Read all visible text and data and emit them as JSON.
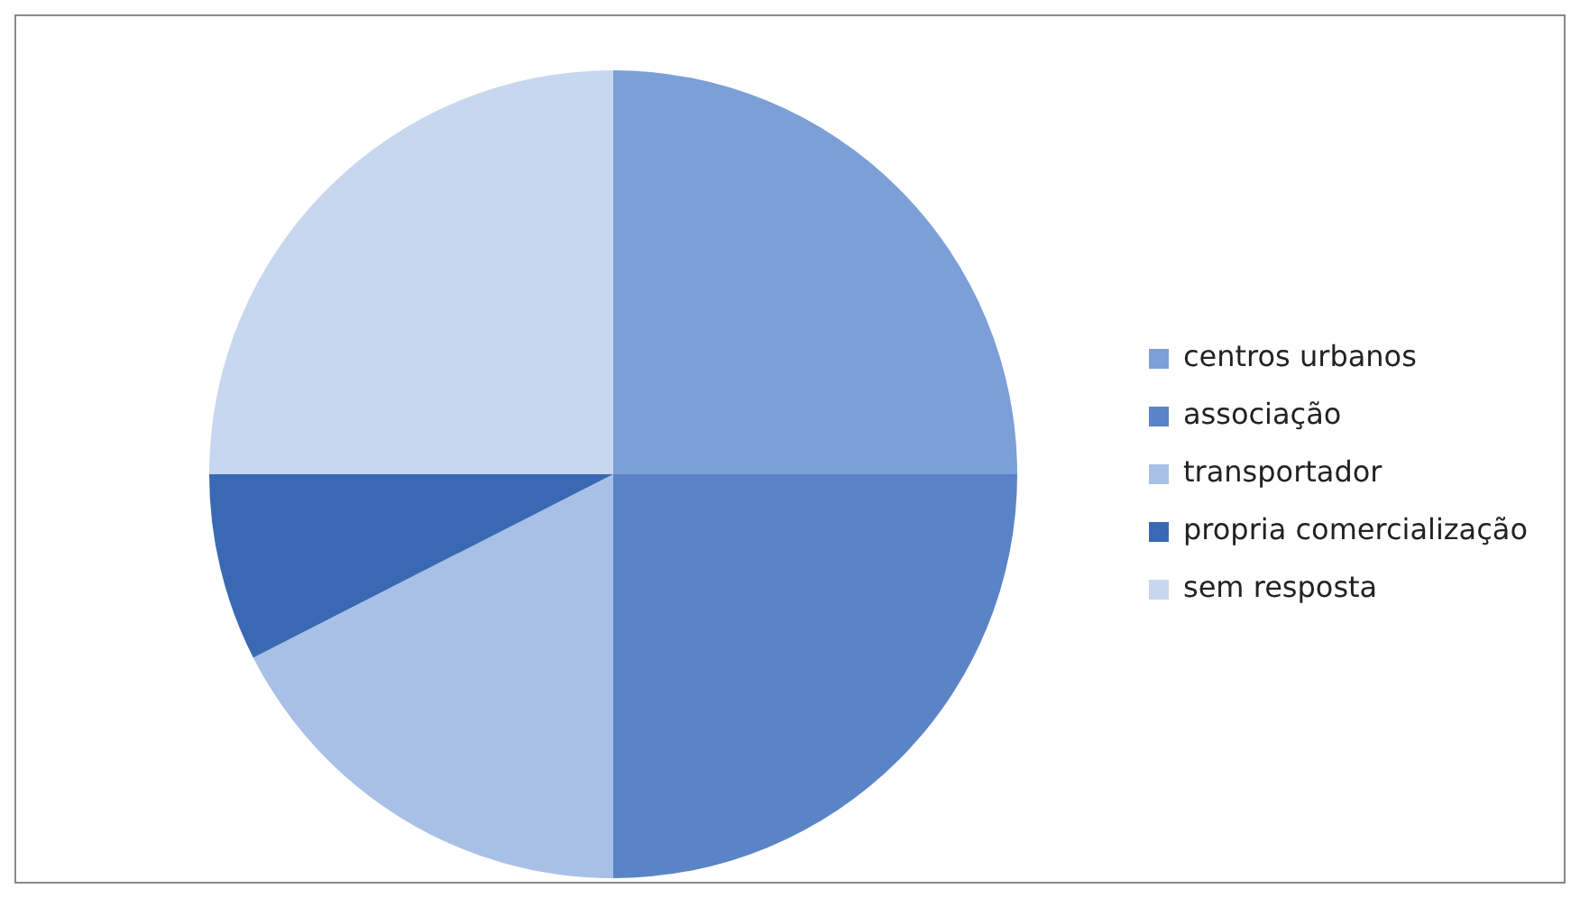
{
  "chart_data": {
    "type": "pie",
    "categories": [
      "centros urbanos",
      "associação",
      "transportador",
      "propria comercialização",
      "sem resposta"
    ],
    "values": [
      25,
      25,
      17.5,
      7.5,
      25
    ],
    "colors": [
      "#7b9fd6",
      "#5a84c6",
      "#a8c0e6",
      "#3a69b3",
      "#c8d7f0"
    ],
    "legend": "right"
  }
}
